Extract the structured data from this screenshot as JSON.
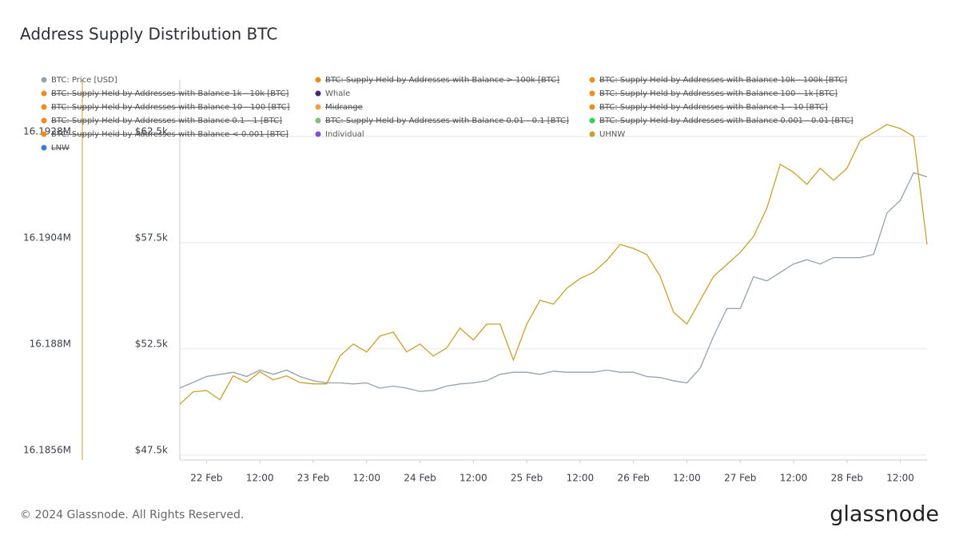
{
  "chart_data": {
    "type": "line",
    "title": "Address Supply Distribution BTC",
    "footer": "© 2024 Glassnode. All Rights Reserved.",
    "brand": "glassnode",
    "x": [
      "21 Feb 18:00",
      "21 Feb 21:00",
      "22 Feb 00:00",
      "22 Feb 03:00",
      "22 Feb 06:00",
      "22 Feb 09:00",
      "22 Feb 12:00",
      "22 Feb 15:00",
      "22 Feb 18:00",
      "22 Feb 21:00",
      "23 Feb 00:00",
      "23 Feb 03:00",
      "23 Feb 06:00",
      "23 Feb 09:00",
      "23 Feb 12:00",
      "23 Feb 15:00",
      "23 Feb 18:00",
      "23 Feb 21:00",
      "24 Feb 00:00",
      "24 Feb 03:00",
      "24 Feb 06:00",
      "24 Feb 09:00",
      "24 Feb 12:00",
      "24 Feb 15:00",
      "24 Feb 18:00",
      "24 Feb 21:00",
      "25 Feb 00:00",
      "25 Feb 03:00",
      "25 Feb 06:00",
      "25 Feb 09:00",
      "25 Feb 12:00",
      "25 Feb 15:00",
      "25 Feb 18:00",
      "25 Feb 21:00",
      "26 Feb 00:00",
      "26 Feb 03:00",
      "26 Feb 06:00",
      "26 Feb 09:00",
      "26 Feb 12:00",
      "26 Feb 15:00",
      "26 Feb 18:00",
      "26 Feb 21:00",
      "27 Feb 00:00",
      "27 Feb 03:00",
      "27 Feb 06:00",
      "27 Feb 09:00",
      "27 Feb 12:00",
      "27 Feb 15:00",
      "27 Feb 18:00",
      "27 Feb 21:00",
      "28 Feb 00:00",
      "28 Feb 03:00",
      "28 Feb 06:00",
      "28 Feb 09:00",
      "28 Feb 12:00",
      "28 Feb 15:00",
      "28 Feb 18:00"
    ],
    "xlim": [
      "21 Feb 18:00",
      "28 Feb 18:00"
    ],
    "xticks": [
      {
        "value": "22 Feb 00:00",
        "label": "22 Feb"
      },
      {
        "value": "22 Feb 12:00",
        "label": "12:00"
      },
      {
        "value": "23 Feb 00:00",
        "label": "23 Feb"
      },
      {
        "value": "23 Feb 12:00",
        "label": "12:00"
      },
      {
        "value": "24 Feb 00:00",
        "label": "24 Feb"
      },
      {
        "value": "24 Feb 12:00",
        "label": "12:00"
      },
      {
        "value": "25 Feb 00:00",
        "label": "25 Feb"
      },
      {
        "value": "25 Feb 12:00",
        "label": "12:00"
      },
      {
        "value": "26 Feb 00:00",
        "label": "26 Feb"
      },
      {
        "value": "26 Feb 12:00",
        "label": "12:00"
      },
      {
        "value": "27 Feb 00:00",
        "label": "27 Feb"
      },
      {
        "value": "27 Feb 12:00",
        "label": "12:00"
      },
      {
        "value": "28 Feb 00:00",
        "label": "28 Feb"
      },
      {
        "value": "28 Feb 12:00",
        "label": "12:00"
      }
    ],
    "ylim": [
      47270,
      65170
    ],
    "yticks": [
      {
        "value": 47500,
        "label": "$47.5k"
      },
      {
        "value": 52500,
        "label": "$52.5k"
      },
      {
        "value": 57500,
        "label": "$57.5k"
      },
      {
        "value": 62500,
        "label": "$62.5k"
      }
    ],
    "y2lim": [
      16.18549,
      16.19408
    ],
    "y2ticks": [
      {
        "value": 16.1856,
        "label": "16.1856M"
      },
      {
        "value": 16.188,
        "label": "16.188M"
      },
      {
        "value": 16.1904,
        "label": "16.1904M"
      },
      {
        "value": 16.1928,
        "label": "16.1928M"
      }
    ],
    "grid": true,
    "series": [
      {
        "name": "BTC: Price [USD]",
        "color": "#93a2ad",
        "hidden": false,
        "axis": "y",
        "values": [
          50660,
          50920,
          51200,
          51300,
          51400,
          51200,
          51500,
          51300,
          51500,
          51200,
          51000,
          50900,
          50900,
          50850,
          50900,
          50650,
          50750,
          50650,
          50500,
          50550,
          50750,
          50850,
          50900,
          51000,
          51300,
          51400,
          51400,
          51300,
          51450,
          51400,
          51400,
          51400,
          51500,
          51400,
          51400,
          51200,
          51150,
          51000,
          50900,
          51600,
          53100,
          54400,
          54400,
          55900,
          55700,
          56100,
          56500,
          56700,
          56500,
          56800,
          56800,
          56800,
          56950,
          58900,
          59500,
          60800,
          60600
        ]
      },
      {
        "name": "BTC: Supply Held by Addresses with Balance > 100k [BTC]",
        "color": "#f08c1e",
        "hidden": true
      },
      {
        "name": "BTC: Supply Held by Addresses with Balance 10k - 100k [BTC]",
        "color": "#f08c1e",
        "hidden": true
      },
      {
        "name": "BTC: Supply Held by Addresses with Balance 1k - 10k [BTC]",
        "color": "#f08c1e",
        "hidden": true
      },
      {
        "name": "Whale",
        "color": "#4a2a6a",
        "hidden": false
      },
      {
        "name": "BTC: Supply Held by Addresses with Balance 100 - 1k [BTC]",
        "color": "#f08c1e",
        "hidden": true
      },
      {
        "name": "BTC: Supply Held by Addresses with Balance 10 - 100 [BTC]",
        "color": "#f08c1e",
        "hidden": true
      },
      {
        "name": "Midrange",
        "color": "#f0a040",
        "hidden": true
      },
      {
        "name": "BTC: Supply Held by Addresses with Balance 1 - 10 [BTC]",
        "color": "#f08c1e",
        "hidden": true
      },
      {
        "name": "BTC: Supply Held by Addresses with Balance 0.1 - 1 [BTC]",
        "color": "#f08c1e",
        "hidden": true
      },
      {
        "name": "BTC: Supply Held by Addresses with Balance 0.01 - 0.1 [BTC]",
        "color": "#7dbf7d",
        "hidden": true
      },
      {
        "name": "BTC: Supply Held by Addresses with Balance 0.001 - 0.01 [BTC]",
        "color": "#2ed25a",
        "hidden": true
      },
      {
        "name": "BTC: Supply Held by Addresses with Balance < 0.001 [BTC]",
        "color": "#f08c1e",
        "hidden": true
      },
      {
        "name": "Individual",
        "color": "#7b4fd6",
        "hidden": false
      },
      {
        "name": "UHNW",
        "color": "#c9a02a",
        "hidden": false,
        "axis": "y2",
        "values": [
          16.18675,
          16.18703,
          16.18706,
          16.18685,
          16.18739,
          16.18724,
          16.18748,
          16.1873,
          16.18739,
          16.18724,
          16.18721,
          16.18721,
          16.18784,
          16.18811,
          16.18793,
          16.18829,
          16.18838,
          16.18793,
          16.18811,
          16.18784,
          16.18802,
          16.18847,
          16.1882,
          16.18856,
          16.18856,
          16.18775,
          16.18856,
          16.1891,
          16.18901,
          16.18937,
          16.18959,
          16.18973,
          16.19,
          16.19036,
          16.19027,
          16.19013,
          16.18964,
          16.18883,
          16.18856,
          16.1891,
          16.18964,
          16.18991,
          16.19018,
          16.19054,
          16.19118,
          16.19217,
          16.19199,
          16.19172,
          16.19208,
          16.19181,
          16.19208,
          16.19271,
          16.19289,
          16.19307,
          16.19298,
          16.1928,
          16.19036
        ]
      },
      {
        "name": "LNW",
        "color": "#3b7dd8",
        "hidden": true
      }
    ]
  }
}
